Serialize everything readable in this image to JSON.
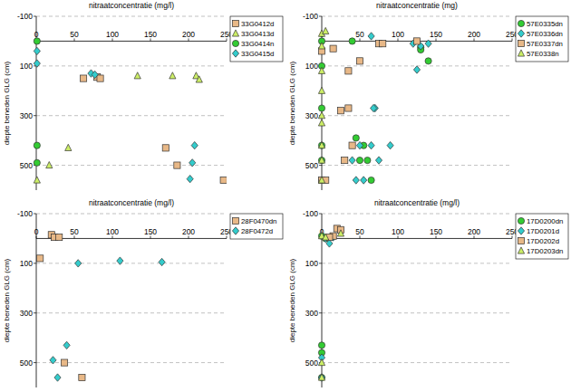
{
  "chart_data": [
    {
      "type": "scatter",
      "title": "nitraatconcentratie (mg/l)",
      "y_label": "diepte beneden GLG (cm)",
      "xlim": [
        0,
        250
      ],
      "xticks": [
        0,
        50,
        100,
        150,
        200,
        250
      ],
      "ylim": [
        -100,
        600
      ],
      "yticks": [
        -100,
        100,
        300,
        500
      ],
      "grid": true,
      "legend": "right",
      "series": [
        {
          "name": "33G0412d",
          "color": "#e8b887",
          "marker": "square",
          "x": [
            62,
            80,
            84,
            170,
            185,
            246
          ],
          "values": [
            150,
            145,
            150,
            430,
            500,
            560
          ]
        },
        {
          "name": "33G0413d",
          "color": "#ccee66",
          "marker": "triangle",
          "x": [
            133,
            179,
            210,
            214,
            42,
            17,
            1
          ],
          "values": [
            140,
            140,
            140,
            155,
            430,
            500,
            560
          ]
        },
        {
          "name": "33G0414n",
          "color": "#33cc33",
          "marker": "circle",
          "x": [
            1,
            1,
            1
          ],
          "values": [
            0,
            420,
            490
          ]
        },
        {
          "name": "33G0415d",
          "color": "#33cccc",
          "marker": "diamond",
          "x": [
            1,
            1,
            72,
            77,
            208,
            205,
            202
          ],
          "values": [
            40,
            90,
            130,
            135,
            420,
            490,
            555
          ]
        }
      ]
    },
    {
      "type": "scatter",
      "title": "nitraatconcentratie (mg)",
      "y_label": "diepte beneden GLG (cm)",
      "xlim": [
        0,
        250
      ],
      "xticks": [
        0,
        50,
        100,
        150,
        200,
        250
      ],
      "ylim": [
        -100,
        600
      ],
      "yticks": [
        -100,
        100,
        300,
        500
      ],
      "grid": true,
      "legend": "right",
      "series": [
        {
          "name": "57E0335dn",
          "color": "#33cc33",
          "marker": "circle",
          "x": [
            0,
            0,
            0,
            0,
            0,
            0,
            40,
            130,
            130,
            140,
            45,
            55,
            50,
            60,
            65
          ],
          "values": [
            0,
            100,
            270,
            420,
            480,
            560,
            0,
            25,
            35,
            80,
            390,
            420,
            480,
            480,
            560
          ]
        },
        {
          "name": "57E0336dn",
          "color": "#33cccc",
          "marker": "diamond",
          "x": [
            65,
            120,
            130,
            140,
            125,
            70,
            68,
            50,
            65,
            90,
            40,
            75,
            45,
            55
          ],
          "values": [
            -20,
            10,
            20,
            10,
            115,
            270,
            270,
            420,
            420,
            420,
            480,
            480,
            560,
            560
          ]
        },
        {
          "name": "57E0337dn",
          "color": "#e8b887",
          "marker": "square",
          "x": [
            0,
            15,
            35,
            50,
            35,
            25,
            40,
            30,
            0,
            5,
            75,
            80,
            125
          ],
          "values": [
            40,
            30,
            120,
            80,
            270,
            280,
            420,
            480,
            560,
            560,
            10,
            10,
            0
          ]
        },
        {
          "name": "57E0338n",
          "color": "#ccee66",
          "marker": "triangle",
          "x": [
            0,
            5,
            0,
            0,
            0,
            0,
            0,
            0,
            0,
            0
          ],
          "values": [
            -30,
            -40,
            20,
            120,
            200,
            300,
            330,
            420,
            480,
            560
          ]
        }
      ]
    },
    {
      "type": "scatter",
      "title": "nitraatconcentratie (mg/l)",
      "y_label": "diepte beneden GLG (cm)",
      "xlim": [
        0,
        250
      ],
      "xticks": [
        0,
        50,
        100,
        150,
        200,
        250
      ],
      "ylim": [
        -100,
        600
      ],
      "yticks": [
        -100,
        100,
        300,
        500
      ],
      "grid": true,
      "legend": "right",
      "series": [
        {
          "name": "28F0470dn",
          "color": "#e8b887",
          "marker": "square",
          "x": [
            20,
            24,
            30,
            5,
            37,
            60
          ],
          "values": [
            -15,
            -5,
            -5,
            80,
            500,
            560
          ]
        },
        {
          "name": "28F0472d",
          "color": "#33cccc",
          "marker": "diamond",
          "x": [
            55,
            110,
            165,
            40,
            22,
            28
          ],
          "values": [
            100,
            90,
            95,
            430,
            490,
            560
          ]
        }
      ]
    },
    {
      "type": "scatter",
      "title": "nitraatconcentratie (mg/l)",
      "y_label": "diepte beneden GLG (cm)",
      "xlim": [
        0,
        250
      ],
      "xticks": [
        0,
        50,
        100,
        150,
        200,
        250
      ],
      "ylim": [
        -100,
        600
      ],
      "yticks": [
        -100,
        100,
        300,
        500
      ],
      "grid": true,
      "legend": "right",
      "series": [
        {
          "name": "17D0200dn",
          "color": "#33cc33",
          "marker": "circle",
          "x": [
            0,
            0,
            0,
            0,
            5
          ],
          "values": [
            -10,
            430,
            460,
            560,
            0
          ]
        },
        {
          "name": "17D0201d",
          "color": "#33cccc",
          "marker": "diamond",
          "x": [
            5,
            10,
            15,
            0,
            0
          ],
          "values": [
            0,
            20,
            -5,
            480,
            560
          ]
        },
        {
          "name": "17D0202d",
          "color": "#e8b887",
          "marker": "square",
          "x": [
            20,
            25,
            15,
            10
          ],
          "values": [
            -40,
            -35,
            -10,
            -5
          ]
        },
        {
          "name": "17D0203dn",
          "color": "#ccee66",
          "marker": "triangle",
          "x": [
            0,
            5,
            25,
            0,
            0
          ],
          "values": [
            -10,
            -5,
            -20,
            500,
            560
          ]
        }
      ]
    }
  ]
}
